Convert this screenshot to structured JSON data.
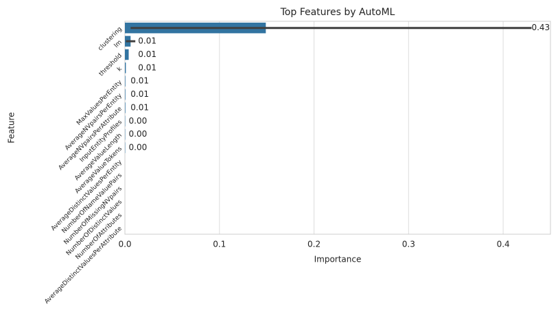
{
  "chart_data": {
    "type": "bar",
    "orientation": "horizontal",
    "title": "Top Features by AutoML",
    "x_label": "Importance",
    "y_label": "Feature",
    "categories": [
      "clustering",
      "lm",
      "threshold",
      "k",
      "MaxValuesPerEntity",
      "AverageNVpairsPerEntity",
      "AverageNVpairsPerAttribute",
      "InputEntityProfiles",
      "AverageValueLength",
      "AverageValueTokens",
      "AverageDistinctValuesPerEntity",
      "NumberOfNameValuePairs",
      "NumberOfMissingNVpairs",
      "NumberOfDistinctValues",
      "NumberOfAttributes",
      "AverageDistinctValuesPerAttribute"
    ],
    "values": [
      0.149,
      0.006,
      0.004,
      0.001,
      0.0005,
      0.0005,
      0.0005,
      0.0003,
      0.0003,
      0.0003,
      0,
      0,
      0,
      0,
      0,
      0
    ],
    "ci_low": [
      0.006,
      0.001,
      null,
      null,
      null,
      null,
      null,
      null,
      null,
      null,
      null,
      null,
      null,
      null,
      null,
      null
    ],
    "ci_high": [
      0.43,
      0.011,
      null,
      null,
      null,
      null,
      null,
      null,
      null,
      null,
      null,
      null,
      null,
      null,
      null,
      null
    ],
    "annotation_values": [
      0.43,
      0.014,
      0.014,
      0.014,
      0.006,
      0.006,
      0.006,
      0.004,
      0.004,
      0.004,
      null,
      null,
      null,
      null,
      null,
      null
    ],
    "annotation_labels": [
      "0.43",
      "0.01",
      "0.01",
      "0.01",
      "0.01",
      "0.01",
      "0.01",
      "0.00",
      "0.00",
      "0.00",
      null,
      null,
      null,
      null,
      null,
      null
    ],
    "color": "#3274a1",
    "error_color": "#3f3f3f",
    "xlim": [
      0,
      0.45
    ],
    "xticks": [
      {
        "value": 0,
        "label": "0.0"
      },
      0.1,
      0.2,
      0.3,
      0.4
    ],
    "grid": true
  }
}
